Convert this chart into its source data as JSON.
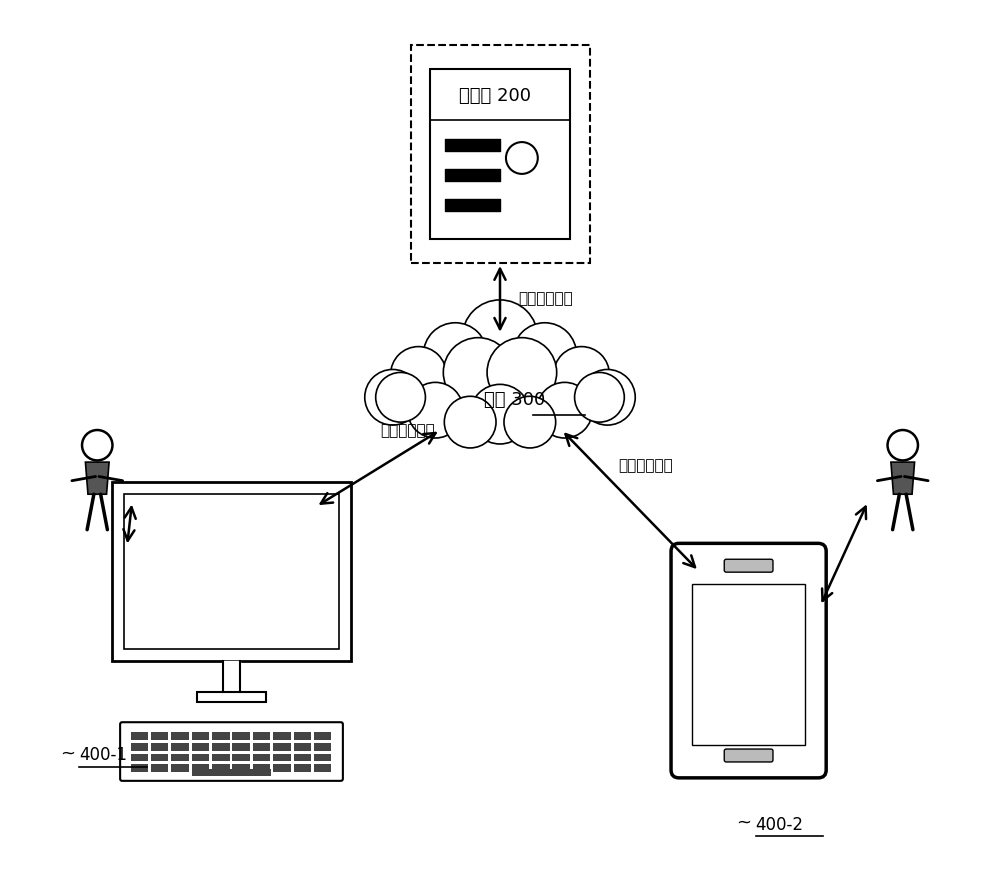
{
  "bg_color": "#ffffff",
  "server_label": "服务器 200",
  "network_label": "网络 300",
  "client1_label": "400-1",
  "client2_label": "400-2",
  "arrow_label": "虚拟场景数据",
  "line_color": "#000000",
  "text_color": "#000000"
}
